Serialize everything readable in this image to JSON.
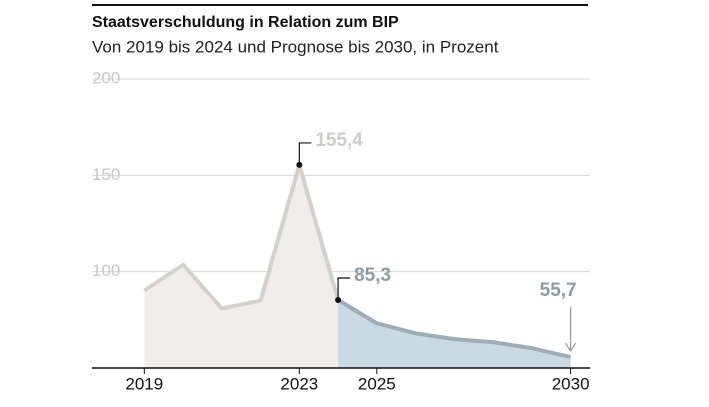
{
  "chart_data": {
    "type": "area",
    "title": "Staatsverschuldung in Relation zum BIP",
    "subtitle": "Von 2019 bis 2024 und Prognose bis 2030, in Prozent",
    "x": [
      2019,
      2020,
      2021,
      2022,
      2023,
      2024,
      2025,
      2026,
      2027,
      2028,
      2029,
      2030
    ],
    "series": [
      {
        "color": "#d3d1cd",
        "fill": "#eeedea",
        "values": [
          90.2,
          103.6,
          80.9,
          85,
          155.4,
          85.3,
          null,
          null,
          null,
          null,
          null,
          null
        ],
        "value_labels": [
          null,
          null,
          null,
          null,
          "155,4",
          null,
          null,
          null,
          null,
          null,
          null,
          null
        ]
      },
      {
        "color": "#9eadb7",
        "fill": "#c9d9e2",
        "values": [
          null,
          null,
          null,
          null,
          null,
          85.3,
          73.2,
          68,
          65,
          63.4,
          60.3,
          55.7
        ],
        "value_labels": [
          null,
          null,
          null,
          null,
          null,
          "85,3",
          null,
          null,
          null,
          null,
          null,
          "55,7"
        ]
      }
    ],
    "xlim": [
      2017.65,
      2030.5
    ],
    "xticks": [
      2019,
      2023,
      2025,
      2030
    ],
    "ylim": [
      50,
      200
    ],
    "yticks": [
      100,
      150,
      200
    ],
    "grid": true
  }
}
